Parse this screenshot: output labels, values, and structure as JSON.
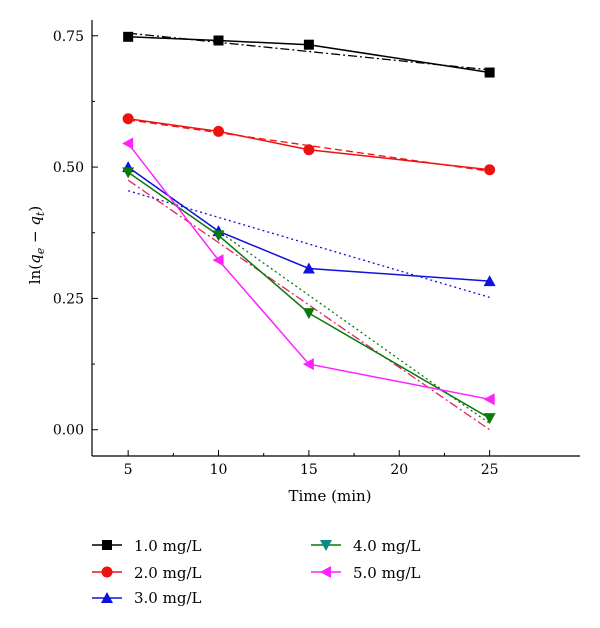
{
  "chart_data": {
    "type": "line",
    "title": "",
    "xlabel": "Time (min)",
    "ylabel": {
      "prefix": "ln(",
      "q1": "q",
      "sub1": "e",
      "minus": " − ",
      "q2": "q",
      "sub2": "t",
      "suffix": ")"
    },
    "x": [
      5,
      10,
      15,
      20,
      25
    ],
    "x_ticks": [
      "5",
      "10",
      "15",
      "20",
      "25"
    ],
    "xlim": [
      3,
      30
    ],
    "ylim": [
      -0.05,
      0.78
    ],
    "y_ticks": [
      "0.00",
      "0.25",
      "0.50",
      "0.75"
    ],
    "y_tick_values": [
      0.0,
      0.25,
      0.5,
      0.75
    ],
    "grid": false,
    "legend_position": "below",
    "series": [
      {
        "name": "1.0 mg/L",
        "color": "#000000",
        "marker": "square",
        "x": [
          5,
          10,
          15,
          25
        ],
        "values": [
          0.748,
          0.741,
          0.733,
          0.68
        ],
        "fit": {
          "style": "dashdot",
          "y_start": 0.755,
          "y_end": 0.685
        }
      },
      {
        "name": "2.0 mg/L",
        "color": "#ee1111",
        "marker": "circle",
        "x": [
          5,
          10,
          15,
          25
        ],
        "values": [
          0.592,
          0.568,
          0.533,
          0.495
        ],
        "fit": {
          "style": "dash",
          "y_start": 0.59,
          "y_end": 0.492
        }
      },
      {
        "name": "3.0 mg/L",
        "color": "#1111dd",
        "marker": "triangle-up",
        "x": [
          5,
          10,
          15,
          25
        ],
        "values": [
          0.5,
          0.378,
          0.307,
          0.283
        ],
        "fit": {
          "style": "dot",
          "y_start": 0.455,
          "y_end": 0.252
        }
      },
      {
        "name": "4.0 mg/L",
        "color": "#0a7a0a",
        "marker": "triangle-down",
        "x": [
          5,
          10,
          15,
          25
        ],
        "values": [
          0.49,
          0.37,
          0.222,
          0.022
        ],
        "fit": {
          "style": "dot",
          "y_start": 0.5,
          "y_end": 0.012
        }
      },
      {
        "name": "5.0 mg/L",
        "color": "#ff22ff",
        "marker": "triangle-left",
        "x": [
          5,
          10,
          15,
          25
        ],
        "values": [
          0.545,
          0.323,
          0.125,
          0.058
        ],
        "fit": {
          "style": "dashdot",
          "y_start": 0.475,
          "y_end": 0.0,
          "color": "#dd2266"
        }
      }
    ]
  }
}
